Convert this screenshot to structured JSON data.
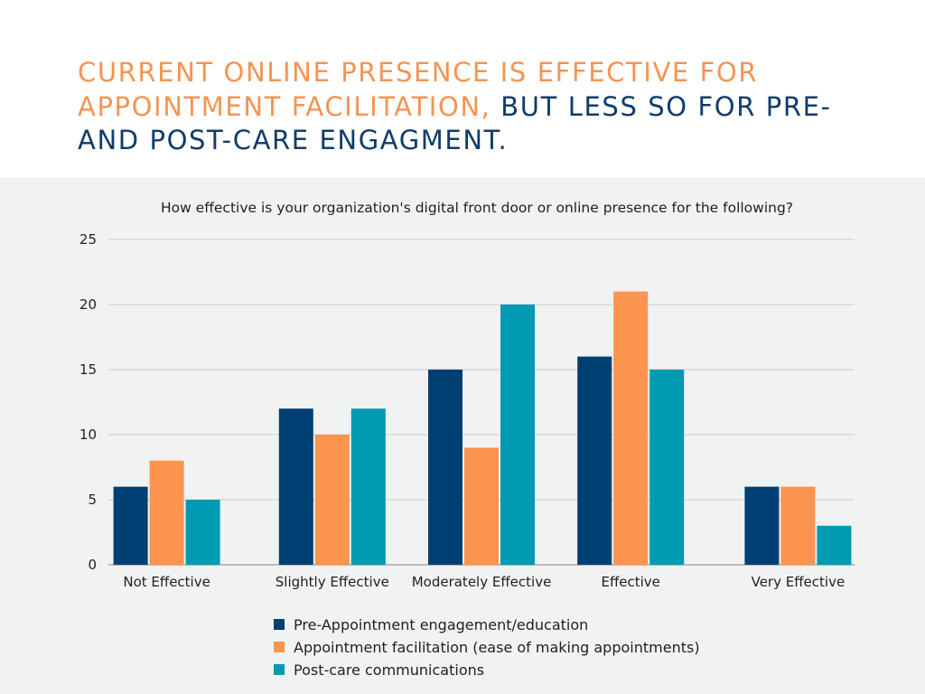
{
  "headline": {
    "accent": "CURRENT ONLINE PRESENCE IS EFFECTIVE FOR APPOINTMENT FACILITATION,",
    "main": " BUT LESS SO FOR PRE- AND POST-CARE ENGAGMENT."
  },
  "colors": {
    "accent": "#f59451",
    "navy": "#0f3c6b",
    "panel_bg": "#f1f2f2"
  },
  "chart_data": {
    "type": "bar",
    "title": "How effective is your organization's digital front door or online presence for the following?",
    "xlabel": "",
    "ylabel": "",
    "categories": [
      "Not Effective",
      "Slightly Effective",
      "Moderately Effective",
      "Effective",
      "Very Effective"
    ],
    "ylim": [
      0,
      25
    ],
    "yticks": [
      0,
      5,
      10,
      15,
      20,
      25
    ],
    "grid": true,
    "legend_position": "bottom",
    "series": [
      {
        "name": "Pre-Appointment engagement/education",
        "color": "#003f72",
        "values": [
          6,
          12,
          15,
          16,
          6
        ]
      },
      {
        "name": "Appointment facilitation (ease of making appointments)",
        "color": "#fb944f",
        "values": [
          8,
          10,
          9,
          21,
          6
        ]
      },
      {
        "name": "Post-care communications",
        "color": "#009ab3",
        "values": [
          5,
          12,
          20,
          15,
          3
        ]
      }
    ]
  }
}
